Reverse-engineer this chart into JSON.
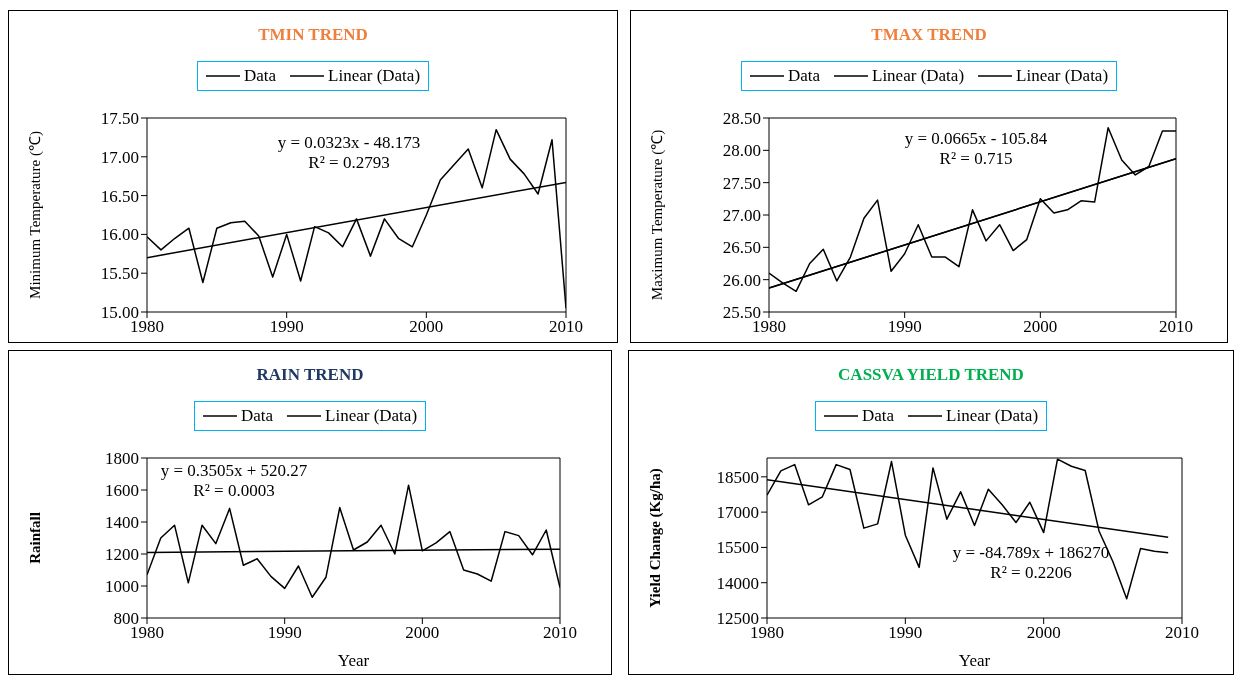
{
  "chart_data": [
    {
      "type": "line",
      "title": "TMIN  TREND",
      "ylabel": "Minimum  Temperature (℃)",
      "xlim": [
        1980,
        2010
      ],
      "xticks": [
        1980,
        1990,
        2000,
        2010
      ],
      "ylim": [
        15,
        17.5
      ],
      "yticks": [
        {
          "value": 15,
          "label": "15.00"
        },
        {
          "value": 15.5,
          "label": "15.50"
        },
        {
          "value": 16,
          "label": "16.00"
        },
        {
          "value": 16.5,
          "label": "16.50"
        },
        {
          "value": 17,
          "label": "17.00"
        },
        {
          "value": 17.5,
          "label": "17.50"
        }
      ],
      "legend": "top",
      "annotations": [
        "y = 0.0323x  - 48.173",
        "R² = 0.2793"
      ],
      "series": [
        {
          "name": "Data",
          "color": "#000000",
          "x": [
            1980,
            1981,
            1982,
            1983,
            1984,
            1985,
            1986,
            1987,
            1988,
            1989,
            1990,
            1991,
            1992,
            1993,
            1994,
            1995,
            1996,
            1997,
            1998,
            1999,
            2000,
            2001,
            2002,
            2003,
            2004,
            2005,
            2006,
            2007,
            2008,
            2009,
            2010
          ],
          "values": [
            15.97,
            15.8,
            15.95,
            16.08,
            15.38,
            16.08,
            16.15,
            16.17,
            15.98,
            15.45,
            16.0,
            15.4,
            16.1,
            16.02,
            15.84,
            16.2,
            15.72,
            16.2,
            15.95,
            15.84,
            16.25,
            16.7,
            16.9,
            17.1,
            16.6,
            17.35,
            16.97,
            16.78,
            16.52,
            17.22,
            15.05
          ]
        },
        {
          "name": "Linear (Data)",
          "color": "#000000",
          "x": [
            1980,
            2010
          ],
          "values": [
            15.7,
            16.67
          ]
        }
      ]
    },
    {
      "type": "line",
      "title": "TMAX  TREND",
      "ylabel": "Maximum  Temperature (℃)",
      "xlim": [
        1980,
        2010
      ],
      "xticks": [
        1980,
        1990,
        2000,
        2010
      ],
      "ylim": [
        25.5,
        28.5
      ],
      "yticks": [
        {
          "value": 25.5,
          "label": "25.50"
        },
        {
          "value": 26,
          "label": "26.00"
        },
        {
          "value": 26.5,
          "label": "26.50"
        },
        {
          "value": 27,
          "label": "27.00"
        },
        {
          "value": 27.5,
          "label": "27.50"
        },
        {
          "value": 28,
          "label": "28.00"
        },
        {
          "value": 28.5,
          "label": "28.50"
        }
      ],
      "legend": "top",
      "annotations": [
        "y = 0.0665x   - 105.84",
        "R² = 0.715"
      ],
      "series": [
        {
          "name": "Data",
          "color": "#000000",
          "x": [
            1980,
            1981,
            1982,
            1983,
            1984,
            1985,
            1986,
            1987,
            1988,
            1989,
            1990,
            1991,
            1992,
            1993,
            1994,
            1995,
            1996,
            1997,
            1998,
            1999,
            2000,
            2001,
            2002,
            2003,
            2004,
            2005,
            2006,
            2007,
            2008,
            2009,
            2010
          ],
          "values": [
            26.1,
            25.95,
            25.82,
            26.25,
            26.47,
            25.98,
            26.35,
            26.95,
            27.23,
            26.13,
            26.4,
            26.85,
            26.35,
            26.35,
            26.2,
            27.08,
            26.6,
            26.85,
            26.45,
            26.62,
            27.25,
            27.03,
            27.08,
            27.22,
            27.2,
            28.35,
            27.85,
            27.62,
            27.75,
            28.3,
            28.3
          ]
        },
        {
          "name": "Linear (Data)",
          "color": "#000000",
          "x": [
            1980,
            2010
          ],
          "values": [
            25.87,
            27.87
          ]
        },
        {
          "name": "Linear (Data)",
          "color": "#000000",
          "x": [
            1980,
            2010
          ],
          "values": [
            25.87,
            27.87
          ]
        }
      ]
    },
    {
      "type": "line",
      "title": "RAIN  TREND",
      "ylabel": "Rainfall",
      "xlabel": "Year",
      "xlim": [
        1980,
        2010
      ],
      "xticks": [
        1980,
        1990,
        2000,
        2010
      ],
      "ylim": [
        800,
        1800
      ],
      "yticks": [
        800,
        1000,
        1200,
        1400,
        1600,
        1800
      ],
      "legend": "top",
      "annotations": [
        "y = 0.3505x   + 520.27",
        "R² = 0.0003"
      ],
      "series": [
        {
          "name": "Data",
          "color": "#000000",
          "x": [
            1980,
            1981,
            1982,
            1983,
            1984,
            1985,
            1986,
            1987,
            1988,
            1989,
            1990,
            1991,
            1992,
            1993,
            1994,
            1995,
            1996,
            1997,
            1998,
            1999,
            2000,
            2001,
            2002,
            2003,
            2004,
            2005,
            2006,
            2007,
            2008,
            2009,
            2010
          ],
          "values": [
            1070,
            1300,
            1380,
            1020,
            1380,
            1265,
            1485,
            1130,
            1170,
            1060,
            985,
            1125,
            930,
            1055,
            1490,
            1225,
            1275,
            1380,
            1200,
            1630,
            1220,
            1270,
            1340,
            1100,
            1075,
            1030,
            1340,
            1315,
            1195,
            1350,
            990
          ]
        },
        {
          "name": "Linear (Data)",
          "color": "#000000",
          "x": [
            1980,
            2010
          ],
          "values": [
            1210,
            1230
          ]
        }
      ]
    },
    {
      "type": "line",
      "title": "CASSVA YIELD  TREND",
      "ylabel": "Yield Change (Kg/ha)",
      "xlabel": "Year",
      "xlim": [
        1980,
        2010
      ],
      "xticks": [
        1980,
        1990,
        2000,
        2010
      ],
      "ylim": [
        12500,
        19300
      ],
      "yticks": [
        12500,
        14000,
        15500,
        17000,
        18500
      ],
      "legend": "top",
      "annotations": [
        "y = -84.789x  + 186270",
        "R² = 0.2206"
      ],
      "series": [
        {
          "name": "Data",
          "color": "#000000",
          "x": [
            1980,
            1981,
            1982,
            1983,
            1984,
            1985,
            1986,
            1987,
            1988,
            1989,
            1990,
            1991,
            1992,
            1993,
            1994,
            1995,
            1996,
            1997,
            1998,
            1999,
            2000,
            2001,
            2002,
            2003,
            2004,
            2005,
            2006,
            2007,
            2008,
            2009
          ],
          "values": [
            17720,
            18750,
            19020,
            17310,
            17650,
            19020,
            18810,
            16320,
            16500,
            19150,
            16020,
            14650,
            18880,
            16700,
            17860,
            16430,
            17970,
            17310,
            16560,
            17420,
            16130,
            19250,
            18950,
            18770,
            16200,
            14900,
            13320,
            15450,
            15340,
            15270
          ]
        },
        {
          "name": "Linear (Data)",
          "color": "#000000",
          "x": [
            1980,
            2009
          ],
          "values": [
            18380,
            15930
          ]
        }
      ]
    }
  ]
}
